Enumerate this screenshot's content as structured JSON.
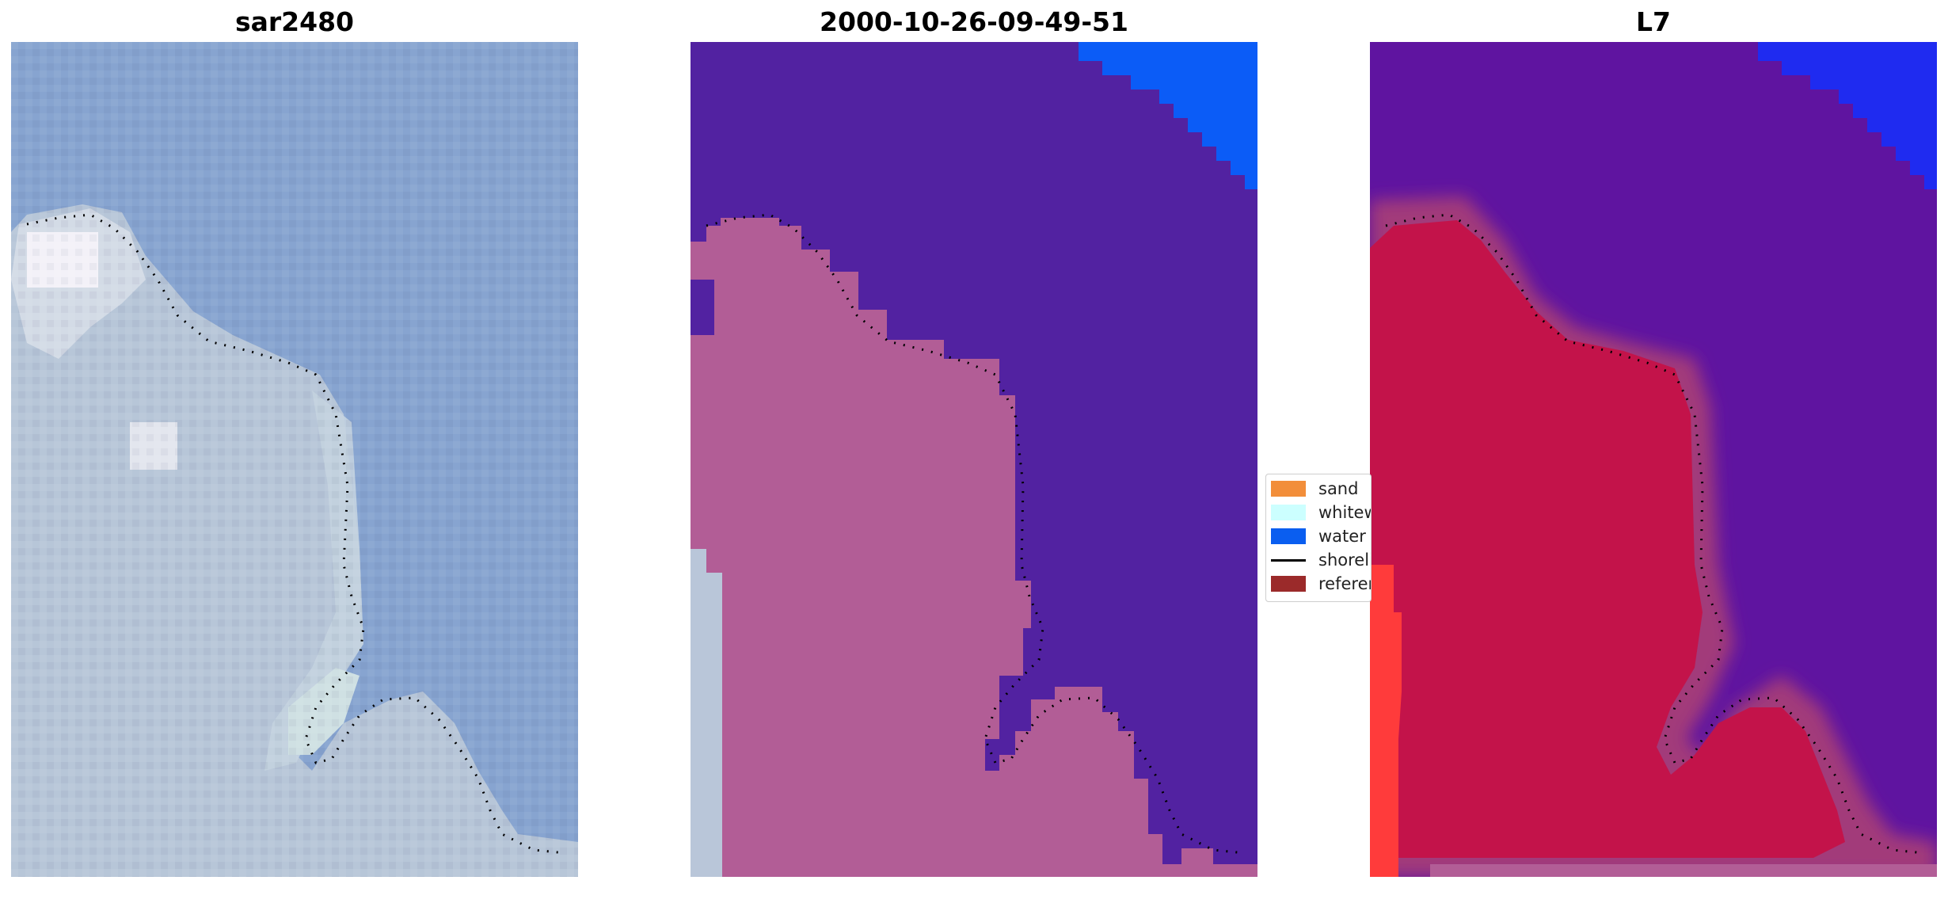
{
  "panels": [
    {
      "title": "sar2480"
    },
    {
      "title": "2000-10-26-09-49-51"
    },
    {
      "title": "L7"
    }
  ],
  "legend": {
    "items": [
      {
        "label": "sand",
        "kind": "patch",
        "color": "#f28e3a"
      },
      {
        "label": "whitewater",
        "kind": "patch",
        "color": "#ccffff"
      },
      {
        "label": "water",
        "kind": "patch",
        "color": "#0a5ef0"
      },
      {
        "label": "shoreline",
        "kind": "line",
        "color": "#000000"
      },
      {
        "label": "reference",
        "kind": "patch",
        "color": "#9b2a2a"
      }
    ]
  },
  "colors": {
    "rgb_water": "#8aa6d2",
    "rgb_surf": "#b8c8d9",
    "classified_water": "#5222a1",
    "classified_land": "#b25d96",
    "classified_whitewater_land": "#b9c6d9",
    "classified_ocean_water": "#0b5cf7",
    "l7_water": "#5f14a0",
    "l7_land": "#c3134a",
    "l7_halo": "#a23a7a",
    "l7_edge": "#ff3b3b",
    "l7_ocean": "#1f2bf0"
  }
}
